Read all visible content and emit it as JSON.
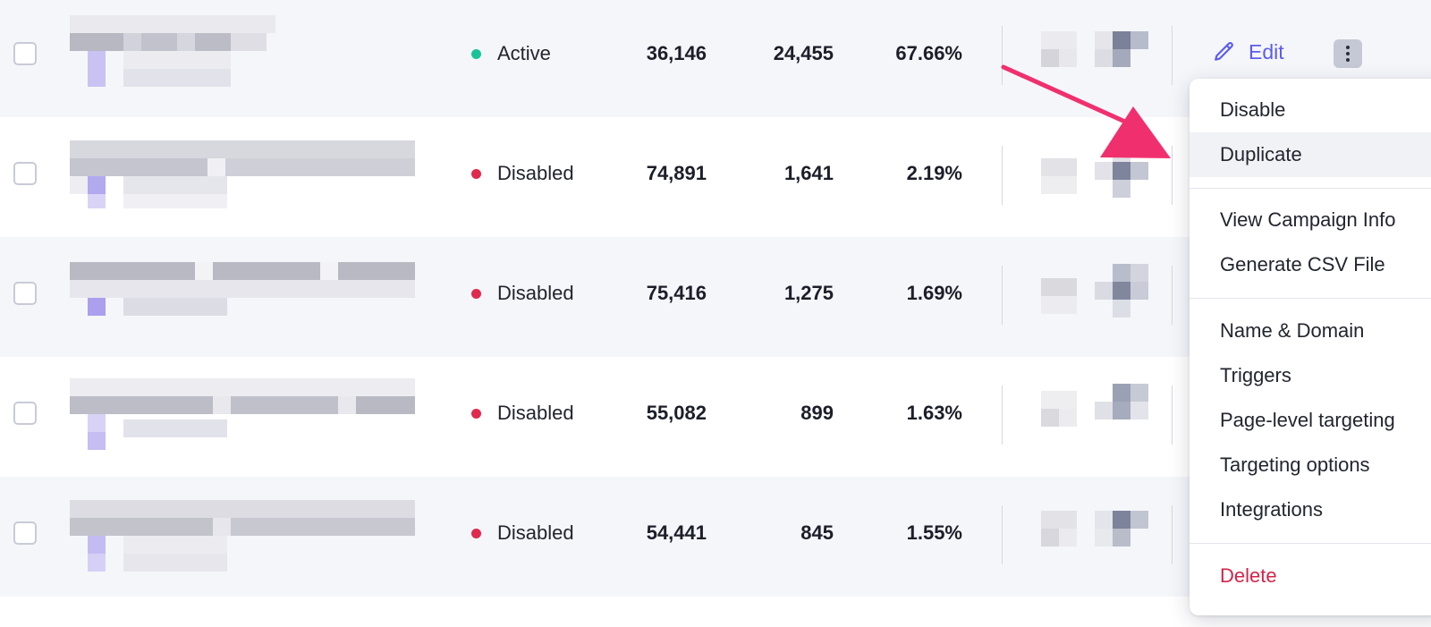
{
  "rows": [
    {
      "status": "Active",
      "status_color": "#19c39a",
      "col1": "36,146",
      "col2": "24,455",
      "col3": "67.66%"
    },
    {
      "status": "Disabled",
      "status_color": "#e0294e",
      "col1": "74,891",
      "col2": "1,641",
      "col3": "2.19%"
    },
    {
      "status": "Disabled",
      "status_color": "#e0294e",
      "col1": "75,416",
      "col2": "1,275",
      "col3": "1.69%"
    },
    {
      "status": "Disabled",
      "status_color": "#e0294e",
      "col1": "55,082",
      "col2": "899",
      "col3": "1.63%"
    },
    {
      "status": "Disabled",
      "status_color": "#e0294e",
      "col1": "54,441",
      "col2": "845",
      "col3": "1.55%"
    }
  ],
  "actions": {
    "edit_label": "Edit",
    "edit_icon": "pencil-icon",
    "more_icon": "kebab-vertical-icon"
  },
  "menu": {
    "items": [
      {
        "label": "Disable"
      },
      {
        "label": "Duplicate"
      },
      {
        "label": "View Campaign Info"
      },
      {
        "label": "Generate CSV File"
      },
      {
        "label": "Name & Domain"
      },
      {
        "label": "Triggers"
      },
      {
        "label": "Page-level targeting"
      },
      {
        "label": "Targeting options"
      },
      {
        "label": "Integrations"
      },
      {
        "label": "Delete"
      }
    ]
  },
  "colors": {
    "accent": "#5b5cf0",
    "active": "#19c39a",
    "disabled": "#e0294e",
    "danger": "#d4244a",
    "annotation_arrow": "#f0306e"
  }
}
